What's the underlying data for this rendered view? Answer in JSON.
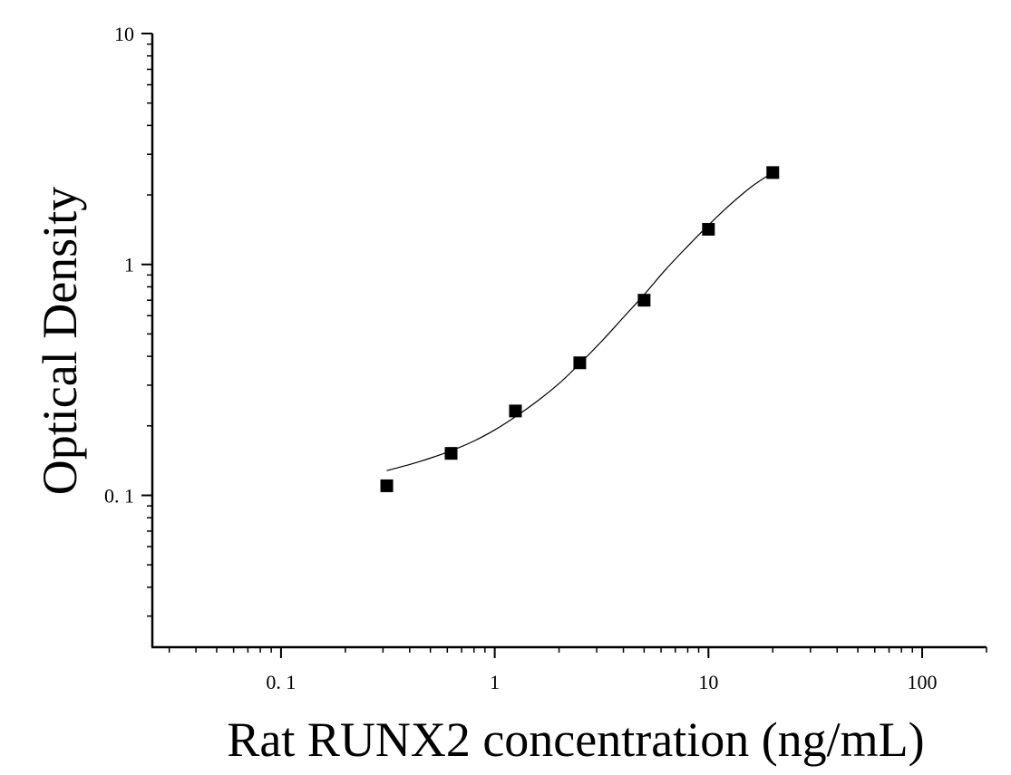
{
  "chart_data": {
    "type": "scatter",
    "title": "",
    "xlabel": "Rat RUNX2 concentration (ng/mL)",
    "ylabel": "Optical Density",
    "x_scale": "log",
    "y_scale": "log",
    "xlim": [
      0.025,
      200
    ],
    "ylim": [
      0.022,
      10
    ],
    "x_ticks": [
      {
        "value": 0.1,
        "label": "0. 1"
      },
      {
        "value": 1,
        "label": "1"
      },
      {
        "value": 10,
        "label": "10"
      },
      {
        "value": 100,
        "label": "100"
      }
    ],
    "y_ticks": [
      {
        "value": 10,
        "label": "10"
      },
      {
        "value": 1,
        "label": "1"
      },
      {
        "value": 0.1,
        "label": "0. 1"
      }
    ],
    "grid": false,
    "legend": "none",
    "series": [
      {
        "marker": "square",
        "color": "#000000",
        "x": [
          0.3125,
          0.625,
          1.25,
          2.5,
          5,
          10,
          20
        ],
        "y": [
          0.11,
          0.152,
          0.232,
          0.375,
          0.7,
          1.42,
          2.5
        ]
      }
    ],
    "fit_curve": {
      "color": "#000000",
      "x": [
        0.3125,
        0.4,
        0.5,
        0.625,
        0.8,
        1.0,
        1.25,
        1.6,
        2.0,
        2.5,
        3.2,
        4.0,
        5.0,
        6.3,
        8.0,
        10.0,
        12.5,
        16.0,
        20.0
      ],
      "y": [
        0.128,
        0.136,
        0.145,
        0.156,
        0.172,
        0.192,
        0.219,
        0.258,
        0.305,
        0.372,
        0.47,
        0.59,
        0.74,
        0.95,
        1.2,
        1.48,
        1.8,
        2.18,
        2.5
      ]
    }
  }
}
